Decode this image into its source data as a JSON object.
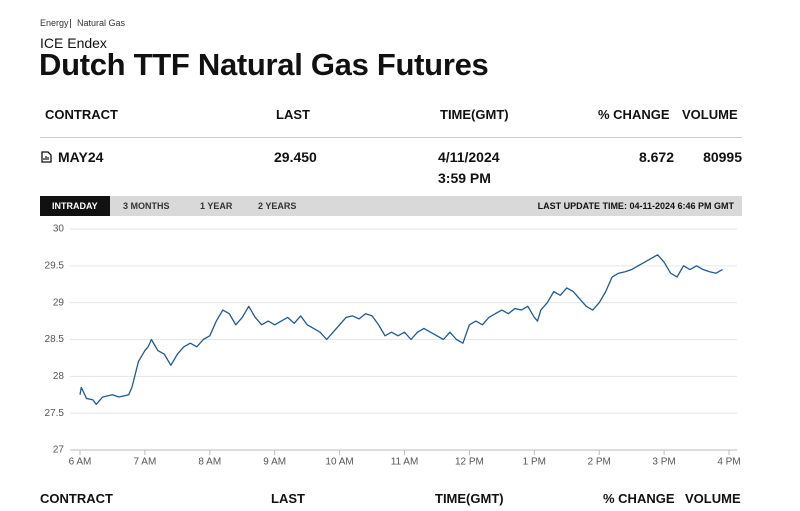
{
  "breadcrumb": [
    "Energy",
    "Natural Gas"
  ],
  "header": {
    "exchange": "ICE Endex",
    "title": "Dutch TTF Natural Gas Futures"
  },
  "table": {
    "columns": [
      "CONTRACT",
      "LAST",
      "TIME(GMT)",
      "% CHANGE",
      "VOLUME"
    ],
    "rows": [
      [
        "MAY24",
        "29.450",
        [
          "4/11/2024",
          "3:59 PM"
        ],
        "8.672",
        "80995"
      ]
    ]
  },
  "tabs": [
    "INTRADAY",
    "3 MONTHS",
    "1 YEAR",
    "2 YEARS"
  ],
  "last_update": "LAST UPDATE TIME: 04-11-2024 6:46 PM GMT",
  "chart_data": {
    "type": "line",
    "x": [
      6.0,
      6.02,
      6.1,
      6.2,
      6.25,
      6.35,
      6.5,
      6.6,
      6.75,
      6.8,
      6.9,
      7.0,
      7.05,
      7.1,
      7.2,
      7.3,
      7.4,
      7.5,
      7.6,
      7.7,
      7.8,
      7.9,
      8.0,
      8.1,
      8.2,
      8.3,
      8.4,
      8.5,
      8.6,
      8.7,
      8.8,
      8.9,
      9.0,
      9.1,
      9.2,
      9.3,
      9.4,
      9.5,
      9.6,
      9.7,
      9.8,
      9.9,
      10.0,
      10.1,
      10.2,
      10.3,
      10.4,
      10.5,
      10.6,
      10.7,
      10.8,
      10.9,
      11.0,
      11.1,
      11.2,
      11.3,
      11.4,
      11.5,
      11.6,
      11.7,
      11.8,
      11.9,
      12.0,
      12.1,
      12.2,
      12.3,
      12.4,
      12.5,
      12.6,
      12.7,
      12.8,
      12.9,
      13.0,
      13.05,
      13.1,
      13.2,
      13.3,
      13.4,
      13.5,
      13.6,
      13.7,
      13.8,
      13.9,
      14.0,
      14.1,
      14.2,
      14.3,
      14.4,
      14.5,
      14.6,
      14.7,
      14.8,
      14.9,
      15.0,
      15.1,
      15.2,
      15.3,
      15.4,
      15.5,
      15.6,
      15.7,
      15.8,
      15.9
    ],
    "series": [
      {
        "name": "MAY24",
        "color": "#1f5a96",
        "values": [
          27.75,
          27.85,
          27.7,
          27.68,
          27.62,
          27.72,
          27.75,
          27.72,
          27.75,
          27.85,
          28.2,
          28.35,
          28.4,
          28.5,
          28.35,
          28.3,
          28.15,
          28.3,
          28.4,
          28.45,
          28.4,
          28.5,
          28.55,
          28.75,
          28.9,
          28.85,
          28.7,
          28.8,
          28.95,
          28.8,
          28.7,
          28.75,
          28.7,
          28.75,
          28.8,
          28.72,
          28.82,
          28.7,
          28.65,
          28.6,
          28.5,
          28.6,
          28.7,
          28.8,
          28.82,
          28.78,
          28.85,
          28.82,
          28.7,
          28.55,
          28.6,
          28.55,
          28.6,
          28.5,
          28.6,
          28.65,
          28.6,
          28.55,
          28.5,
          28.6,
          28.5,
          28.45,
          28.7,
          28.75,
          28.7,
          28.8,
          28.85,
          28.9,
          28.85,
          28.92,
          28.9,
          28.95,
          28.8,
          28.75,
          28.9,
          29.0,
          29.15,
          29.1,
          29.2,
          29.15,
          29.05,
          28.95,
          28.9,
          29.0,
          29.15,
          29.35,
          29.4,
          29.42,
          29.45,
          29.5,
          29.55,
          29.6,
          29.65,
          29.55,
          29.4,
          29.35,
          29.5,
          29.45,
          29.5,
          29.45,
          29.42,
          29.4,
          29.45
        ]
      }
    ],
    "xlim": [
      6,
      16
    ],
    "xticks": [
      {
        "value": 6,
        "label": "6 AM"
      },
      {
        "value": 7,
        "label": "7 AM"
      },
      {
        "value": 8,
        "label": "8 AM"
      },
      {
        "value": 9,
        "label": "9 AM"
      },
      {
        "value": 10,
        "label": "10 AM"
      },
      {
        "value": 11,
        "label": "11 AM"
      },
      {
        "value": 12,
        "label": "12 PM"
      },
      {
        "value": 13,
        "label": "1 PM"
      },
      {
        "value": 14,
        "label": "2 PM"
      },
      {
        "value": 15,
        "label": "3 PM"
      },
      {
        "value": 16,
        "label": "4 PM"
      }
    ],
    "ylim": [
      27,
      30
    ],
    "yticks": [
      27,
      27.5,
      28,
      28.5,
      29,
      29.5,
      30
    ],
    "grid": true
  }
}
